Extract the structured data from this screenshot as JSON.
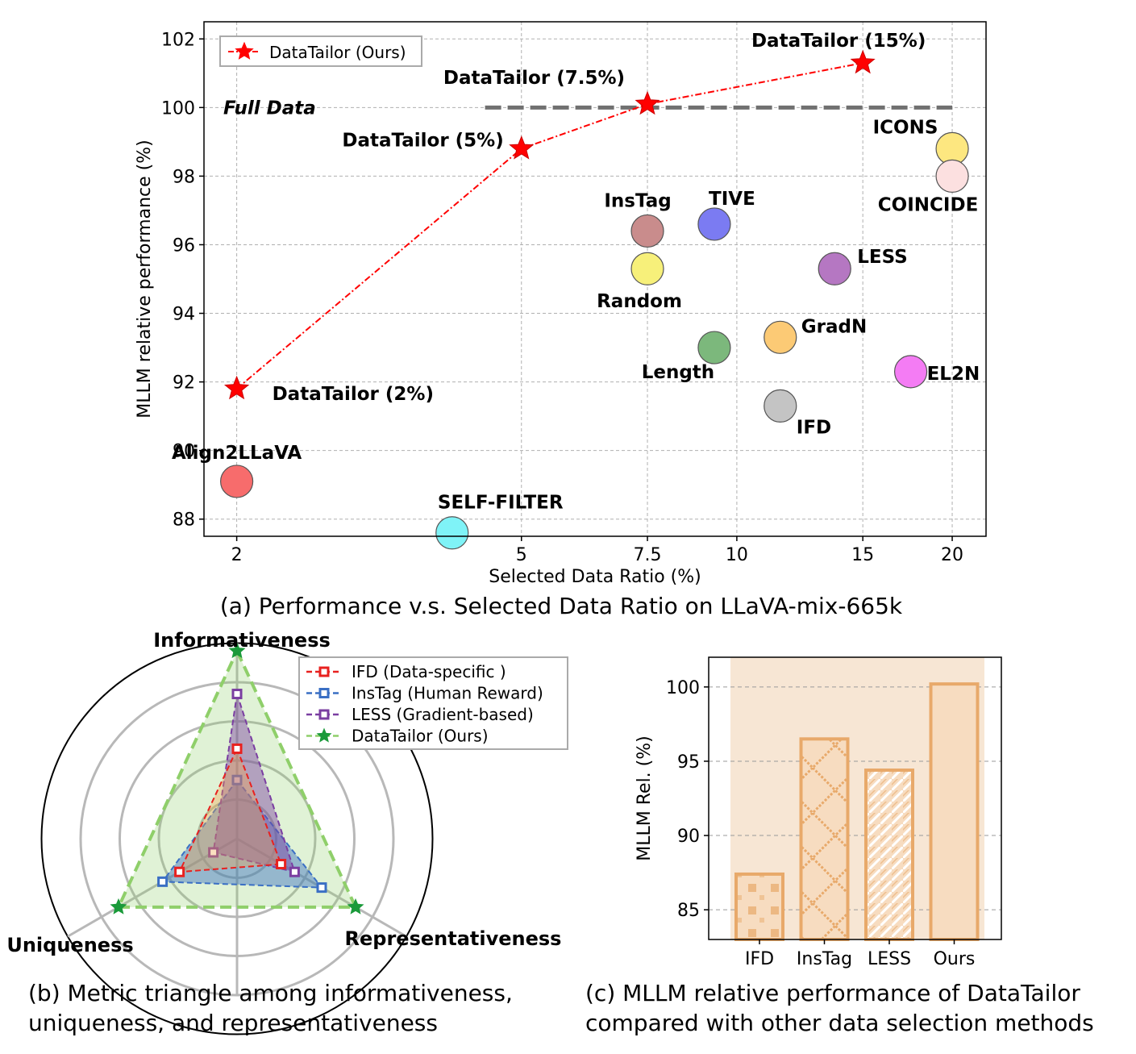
{
  "chart_data": [
    {
      "type": "scatter",
      "title": "",
      "xlabel": "Selected Data Ratio (%)",
      "ylabel": "MLLM relative performance (%)",
      "xscale": "log",
      "xlim": [
        1.8,
        22.3
      ],
      "ylim": [
        87.5,
        102.5
      ],
      "xticks": [
        2,
        5,
        7.5,
        10,
        15,
        20
      ],
      "xtick_labels": [
        "2",
        "5",
        "7.5",
        "10",
        "15",
        "20"
      ],
      "yticks": [
        88,
        90,
        92,
        94,
        96,
        98,
        100,
        102
      ],
      "grid": true,
      "legend": {
        "position": "top-left",
        "entries": [
          "DataTailor (Ours)"
        ]
      },
      "reference_line": {
        "label": "Full Data",
        "y": 100,
        "x_from": 3.3,
        "x_to": 20
      },
      "ours_series": {
        "name": "DataTailor (Ours)",
        "color": "#ff0000",
        "points": [
          {
            "x": 2,
            "y": 91.8,
            "label": "DataTailor (2%)"
          },
          {
            "x": 5,
            "y": 98.8,
            "label": "DataTailor (5%)"
          },
          {
            "x": 7.5,
            "y": 100.1,
            "label": "DataTailor (7.5%)"
          },
          {
            "x": 15,
            "y": 101.3,
            "label": "DataTailor (15%)"
          }
        ]
      },
      "baselines": [
        {
          "label": "Align2LLaVA",
          "x": 2,
          "y": 89.1,
          "color": "#f76c6c"
        },
        {
          "label": "SELF-FILTER",
          "x": 4.0,
          "y": 87.6,
          "color": "#7ff3f7"
        },
        {
          "label": "InsTag",
          "x": 7.5,
          "y": 96.4,
          "color": "#c98c8c"
        },
        {
          "label": "Random",
          "x": 7.5,
          "y": 95.3,
          "color": "#f7f07a"
        },
        {
          "label": "TIVE",
          "x": 9.3,
          "y": 96.6,
          "color": "#7b7bf2"
        },
        {
          "label": "LESS",
          "x": 13.7,
          "y": 95.3,
          "color": "#b577c2"
        },
        {
          "label": "Length",
          "x": 9.3,
          "y": 93.0,
          "color": "#7cb87c"
        },
        {
          "label": "GradN",
          "x": 11.5,
          "y": 93.3,
          "color": "#fcca75"
        },
        {
          "label": "IFD",
          "x": 11.5,
          "y": 91.3,
          "color": "#c4c4c4"
        },
        {
          "label": "EL2N",
          "x": 17.5,
          "y": 92.3,
          "color": "#f47cf4"
        },
        {
          "label": "ICONS",
          "x": 20,
          "y": 98.8,
          "color": "#fde780"
        },
        {
          "label": "COINCIDE",
          "x": 20,
          "y": 98.0,
          "color": "#fce0e0"
        }
      ],
      "caption": "(a) Performance v.s. Selected Data Ratio on LLaVA-mix-665k"
    },
    {
      "type": "radar",
      "axes": [
        "Informativeness",
        "Representativeness",
        "Uniqueness"
      ],
      "rmax": 5,
      "series": [
        {
          "name": "IFD (Data-specific )",
          "color": "#e8211f",
          "values": [
            2.3,
            1.3,
            1.7
          ]
        },
        {
          "name": "InsTag (Human Reward)",
          "color": "#3a6fc4",
          "values": [
            1.5,
            2.5,
            2.2
          ]
        },
        {
          "name": "LESS (Gradient-based)",
          "color": "#7a3ea1",
          "values": [
            3.7,
            1.7,
            0.7
          ]
        },
        {
          "name": "DataTailor (Ours)",
          "color": "#1a9a3a",
          "values": [
            4.8,
            3.5,
            3.5
          ]
        }
      ],
      "caption": [
        "(b) Metric triangle among informativeness,",
        "uniqueness, and representativeness"
      ]
    },
    {
      "type": "bar",
      "categories": [
        "IFD",
        "InsTag",
        "LESS",
        "Ours"
      ],
      "values": [
        87.4,
        96.5,
        94.4,
        100.2
      ],
      "ylabel": "MLLM Rel. (%)",
      "ylim": [
        83,
        102
      ],
      "yticks": [
        85,
        90,
        95,
        100
      ],
      "bar_color": "#e8a96a",
      "background_color": "#f7e6d4",
      "caption": [
        "(c) MLLM relative performance of DataTailor",
        "compared with other data selection methods"
      ]
    }
  ]
}
